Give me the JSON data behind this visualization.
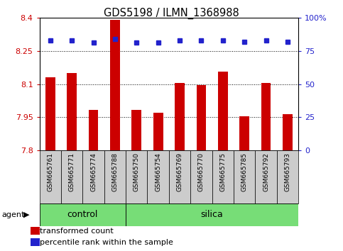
{
  "title": "GDS5198 / ILMN_1368988",
  "samples": [
    "GSM665761",
    "GSM665771",
    "GSM665774",
    "GSM665788",
    "GSM665750",
    "GSM665754",
    "GSM665769",
    "GSM665770",
    "GSM665775",
    "GSM665785",
    "GSM665792",
    "GSM665793"
  ],
  "bar_values": [
    8.13,
    8.15,
    7.985,
    8.39,
    7.985,
    7.97,
    8.105,
    8.095,
    8.155,
    7.955,
    8.105,
    7.965
  ],
  "percentile_values": [
    83,
    83,
    81,
    84,
    81,
    81,
    83,
    83,
    83,
    82,
    83,
    82
  ],
  "control_samples": 4,
  "silica_samples": 8,
  "ymin": 7.8,
  "ymax": 8.4,
  "yticks": [
    7.8,
    7.95,
    8.1,
    8.25,
    8.4
  ],
  "right_yticks": [
    0,
    25,
    50,
    75,
    100
  ],
  "bar_color": "#CC0000",
  "dot_color": "#2222CC",
  "label_bg_color": "#CCCCCC",
  "control_color": "#77DD77",
  "silica_color": "#77DD77",
  "legend_items": [
    "transformed count",
    "percentile rank within the sample"
  ],
  "agent_label": "agent",
  "control_label": "control",
  "silica_label": "silica"
}
